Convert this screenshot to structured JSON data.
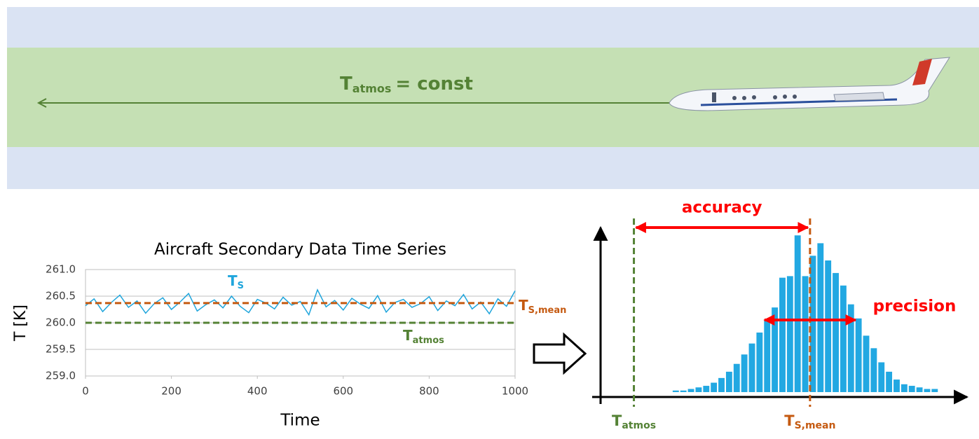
{
  "banner": {
    "label": "T",
    "label_sub": "atmos",
    "label_rest": "= const"
  },
  "chart_data": [
    {
      "type": "line",
      "title": "Aircraft Secondary Data Time Series",
      "xlabel": "Time",
      "ylabel": "T [K]",
      "x": [
        0,
        20,
        40,
        60,
        80,
        100,
        120,
        140,
        160,
        180,
        200,
        220,
        240,
        260,
        280,
        300,
        320,
        340,
        360,
        380,
        400,
        420,
        440,
        460,
        480,
        500,
        520,
        540,
        560,
        580,
        600,
        620,
        640,
        660,
        680,
        700,
        720,
        740,
        760,
        780,
        800,
        820,
        840,
        860,
        880,
        900,
        920,
        940,
        960,
        980,
        1000
      ],
      "series": [
        {
          "name": "T",
          "name_sub": "S",
          "color": "#1fa5dc",
          "values": [
            260.32,
            260.45,
            260.21,
            260.38,
            260.52,
            260.29,
            260.41,
            260.18,
            260.36,
            260.47,
            260.25,
            260.39,
            260.55,
            260.22,
            260.34,
            260.43,
            260.28,
            260.5,
            260.31,
            260.19,
            260.44,
            260.37,
            260.26,
            260.48,
            260.33,
            260.4,
            260.15,
            260.62,
            260.3,
            260.42,
            260.24,
            260.46,
            260.35,
            260.27,
            260.51,
            260.2,
            260.38,
            260.44,
            260.29,
            260.36,
            260.49,
            260.23,
            260.41,
            260.32,
            260.53,
            260.26,
            260.39,
            260.17,
            260.45,
            260.31,
            260.6
          ]
        }
      ],
      "ref_lines": [
        {
          "value": 260.37,
          "color": "#c55a11",
          "label": "T",
          "label_sub": "S,mean"
        },
        {
          "value": 260.0,
          "color": "#548235",
          "label": "T",
          "label_sub": "atmos"
        }
      ],
      "xlim": [
        0,
        1000
      ],
      "ylim": [
        259,
        261
      ],
      "xticks": [
        0,
        200,
        400,
        600,
        800,
        1000
      ],
      "yticks": [
        {
          "value": 259,
          "label": "259.0"
        },
        {
          "value": 259.5,
          "label": "259.5"
        },
        {
          "value": 260,
          "label": "260.0"
        },
        {
          "value": 260.5,
          "label": "260.5"
        },
        {
          "value": 261,
          "label": "261.0"
        }
      ],
      "grid": true
    },
    {
      "type": "histogram",
      "color": "#22a8e2",
      "bins": [
        260.08,
        260.096,
        260.112,
        260.128,
        260.144,
        260.16,
        260.176,
        260.192,
        260.208,
        260.224,
        260.24,
        260.256,
        260.272,
        260.288,
        260.304,
        260.32,
        260.336,
        260.352,
        260.368,
        260.384,
        260.4,
        260.416,
        260.432,
        260.448,
        260.464,
        260.48,
        260.496,
        260.512,
        260.528,
        260.544,
        260.56,
        260.576,
        260.592,
        260.608,
        260.624,
        260.64
      ],
      "values": [
        1,
        1,
        2,
        3,
        4,
        6,
        9,
        13,
        18,
        24,
        31,
        38,
        46,
        54,
        73,
        74,
        100,
        74,
        87,
        95,
        84,
        76,
        68,
        56,
        47,
        36,
        28,
        19,
        13,
        8,
        5,
        4,
        3,
        2,
        2
      ],
      "xlim": [
        259.93,
        260.7
      ],
      "ylim": [
        0,
        105
      ],
      "ref_lines": [
        {
          "value": 260.0,
          "color": "#548235",
          "label": "T",
          "label_sub": "atmos"
        },
        {
          "value": 260.37,
          "color": "#c55a11",
          "label": "T",
          "label_sub": "S,mean"
        }
      ],
      "annotations": [
        {
          "label": "accuracy",
          "from": 260.0,
          "to": 260.37,
          "color": "#ff0000"
        },
        {
          "label": "precision",
          "from": 260.27,
          "to": 260.47,
          "color": "#ff0000"
        }
      ]
    }
  ]
}
